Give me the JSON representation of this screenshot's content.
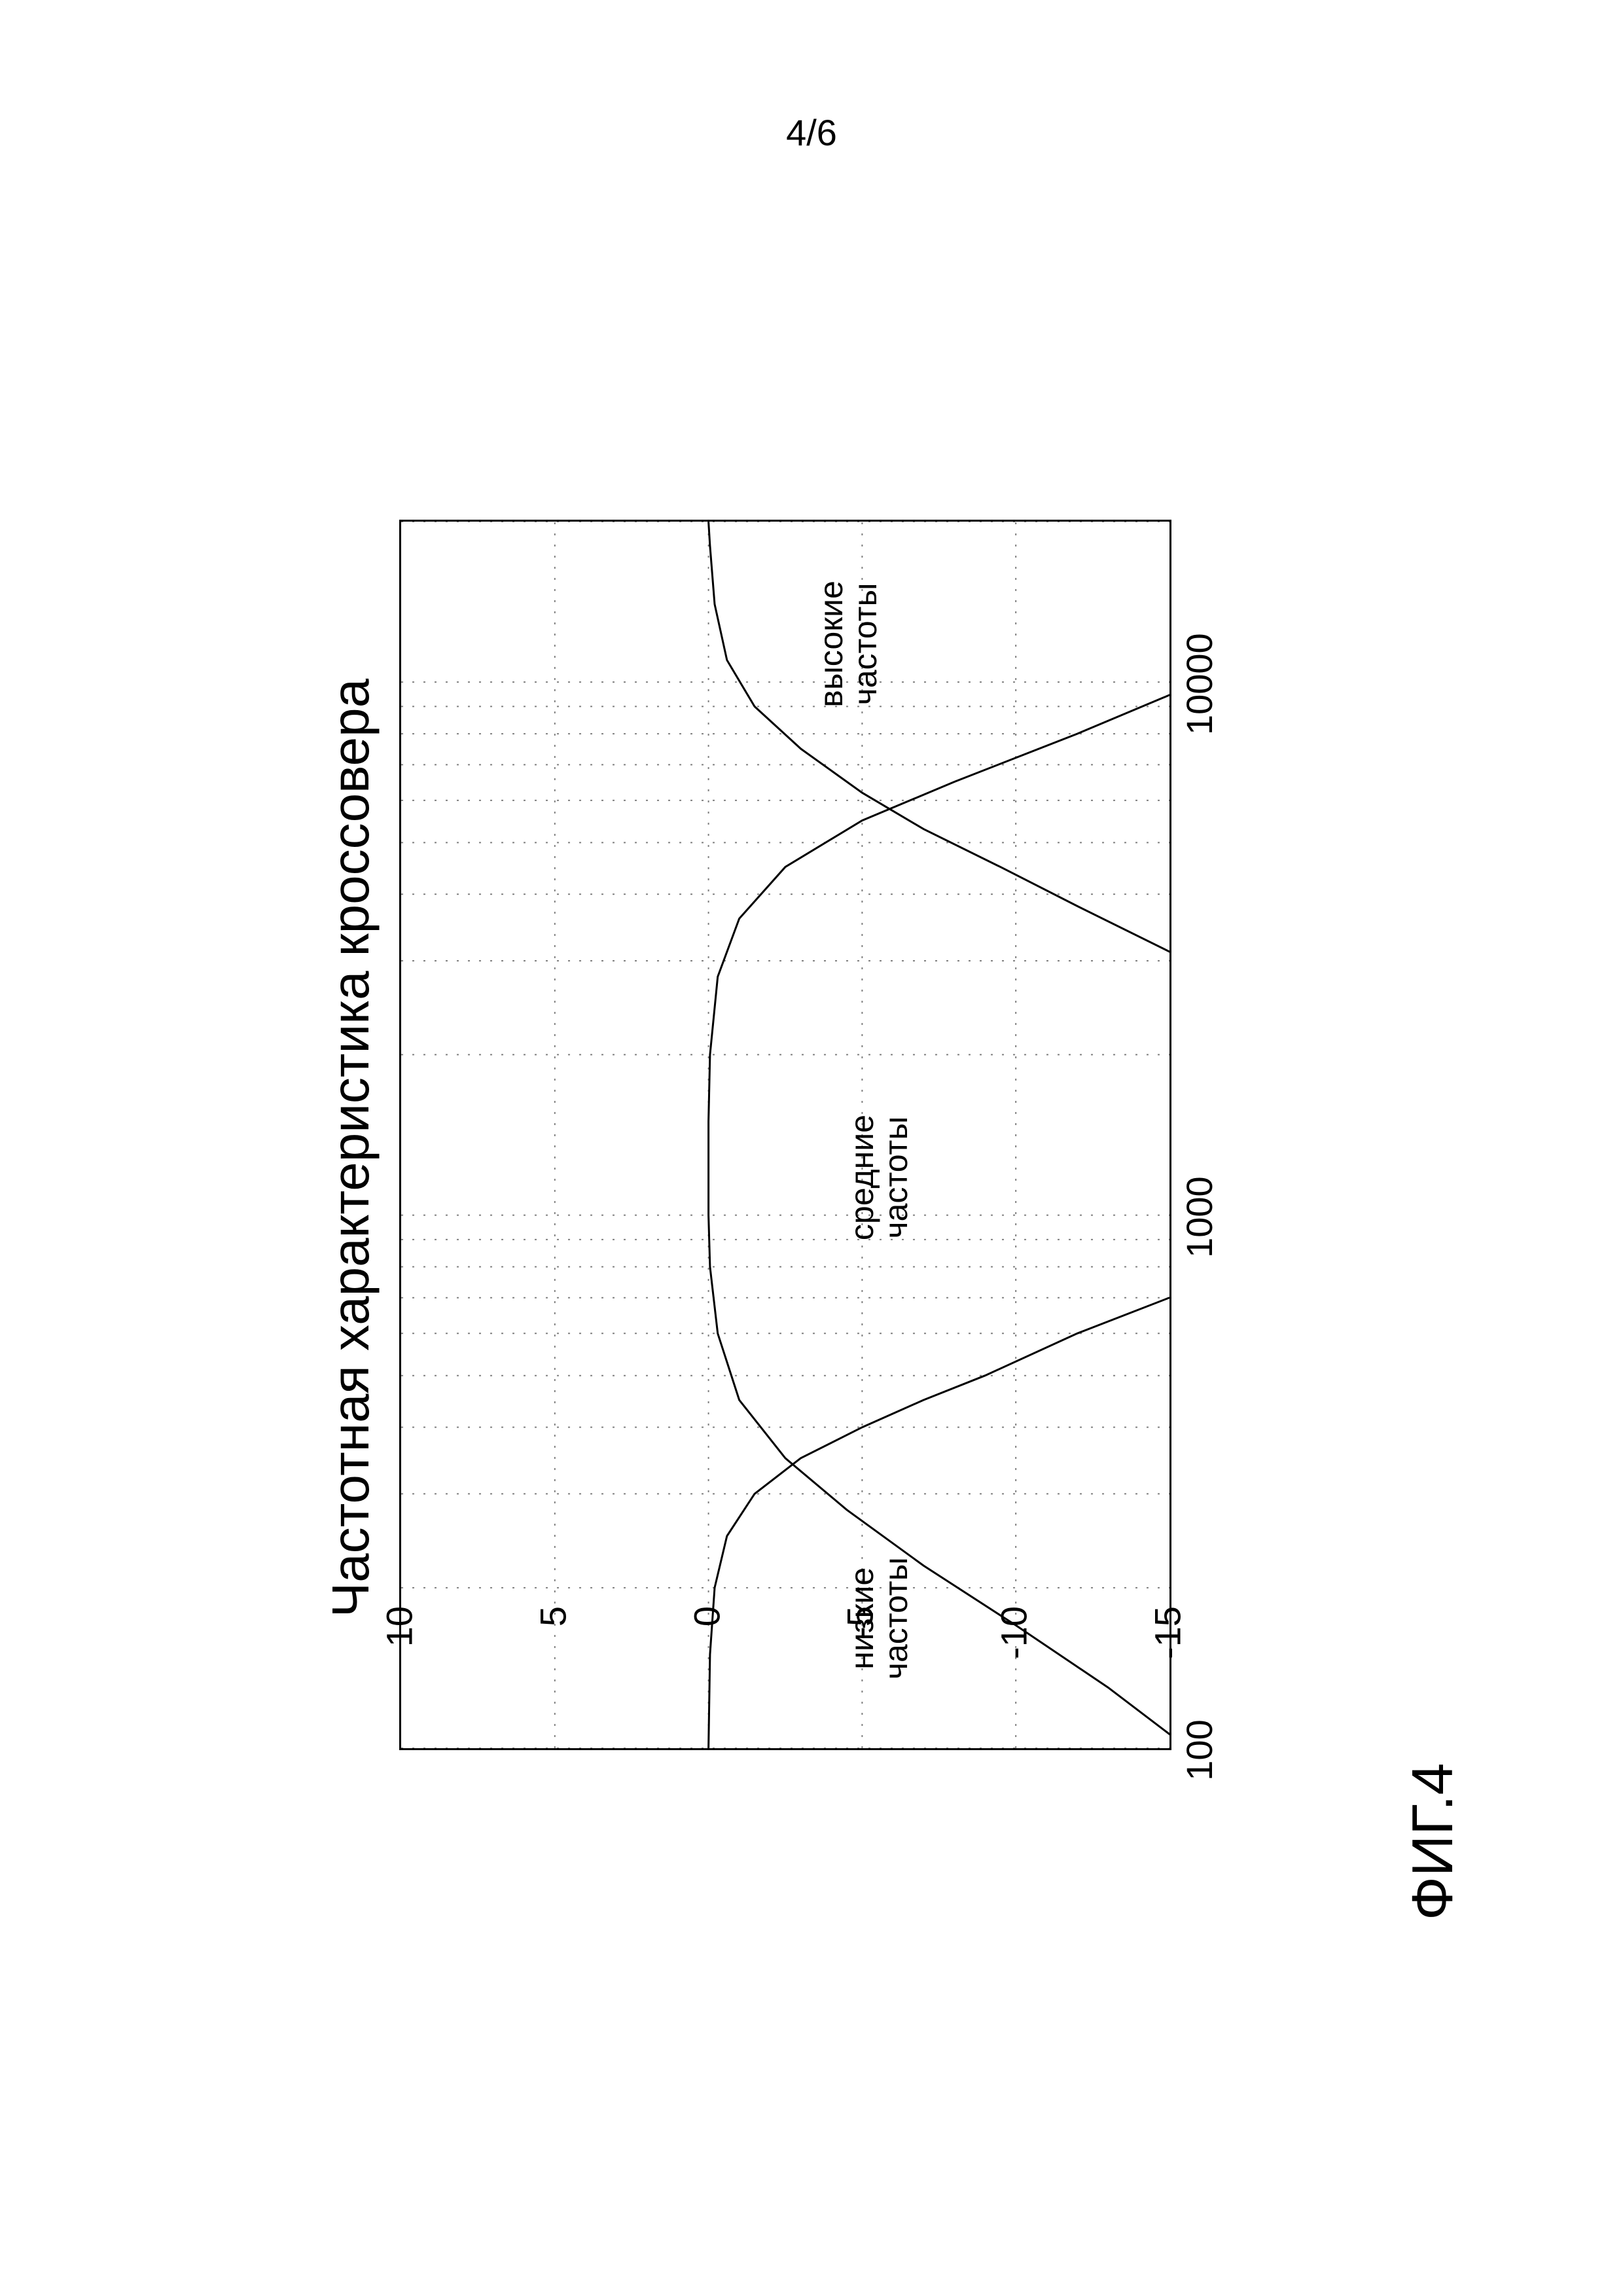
{
  "page_number": "4/6",
  "figure_caption": "ФИГ.4",
  "chart": {
    "type": "line",
    "title": "Частотная характеристика кроссовера",
    "title_fontsize": 80,
    "background_color": "#ffffff",
    "border_color": "#000000",
    "grid_color": "#808080",
    "grid_style": "dotted",
    "line_color": "#000000",
    "line_width": 3,
    "x_axis": {
      "scale": "log",
      "min": 100,
      "max": 20000,
      "ticks": [
        100,
        1000,
        10000
      ],
      "tick_labels": [
        "100",
        "1000",
        "10000"
      ],
      "minor_ticks_per_decade": [
        2,
        3,
        4,
        5,
        6,
        7,
        8,
        9
      ],
      "label_fontsize": 56
    },
    "y_axis": {
      "scale": "linear",
      "min": -15,
      "max": 10,
      "ticks": [
        -15,
        -10,
        -5,
        0,
        5,
        10
      ],
      "tick_labels": [
        "-15",
        "-10",
        "-5",
        "0",
        "5",
        "10"
      ],
      "label_fontsize": 56
    },
    "series": [
      {
        "name": "low",
        "label": "низкие\nчастоты",
        "label_pos_x": 180,
        "label_pos_y": -4.5,
        "data": [
          [
            100,
            0.0
          ],
          [
            150,
            -0.05
          ],
          [
            200,
            -0.2
          ],
          [
            250,
            -0.6
          ],
          [
            300,
            -1.5
          ],
          [
            350,
            -3.0
          ],
          [
            400,
            -5.0
          ],
          [
            450,
            -7.0
          ],
          [
            500,
            -9.0
          ],
          [
            600,
            -12.0
          ],
          [
            700,
            -15.0
          ]
        ]
      },
      {
        "name": "mid",
        "label": "средние\nчастоты",
        "label_pos_x": 1200,
        "label_pos_y": -4.5,
        "data": [
          [
            100,
            -15.6
          ],
          [
            130,
            -13.0
          ],
          [
            170,
            -10.0
          ],
          [
            220,
            -7.0
          ],
          [
            280,
            -4.5
          ],
          [
            350,
            -2.5
          ],
          [
            450,
            -1.0
          ],
          [
            600,
            -0.3
          ],
          [
            800,
            -0.05
          ],
          [
            1000,
            0.0
          ],
          [
            1500,
            0.0
          ],
          [
            2000,
            -0.05
          ],
          [
            2800,
            -0.3
          ],
          [
            3600,
            -1.0
          ],
          [
            4500,
            -2.5
          ],
          [
            5500,
            -5.0
          ],
          [
            6500,
            -8.0
          ],
          [
            8000,
            -12.0
          ],
          [
            10000,
            -16.0
          ]
        ]
      },
      {
        "name": "high",
        "label": "высокие\nчастоты",
        "label_pos_x": 12000,
        "label_pos_y": -3.5,
        "data": [
          [
            3000,
            -15.6
          ],
          [
            3800,
            -12.0
          ],
          [
            4500,
            -9.5
          ],
          [
            5300,
            -7.0
          ],
          [
            6200,
            -5.0
          ],
          [
            7500,
            -3.0
          ],
          [
            9000,
            -1.5
          ],
          [
            11000,
            -0.6
          ],
          [
            14000,
            -0.2
          ],
          [
            18000,
            -0.05
          ],
          [
            20000,
            0.0
          ]
        ]
      }
    ]
  }
}
